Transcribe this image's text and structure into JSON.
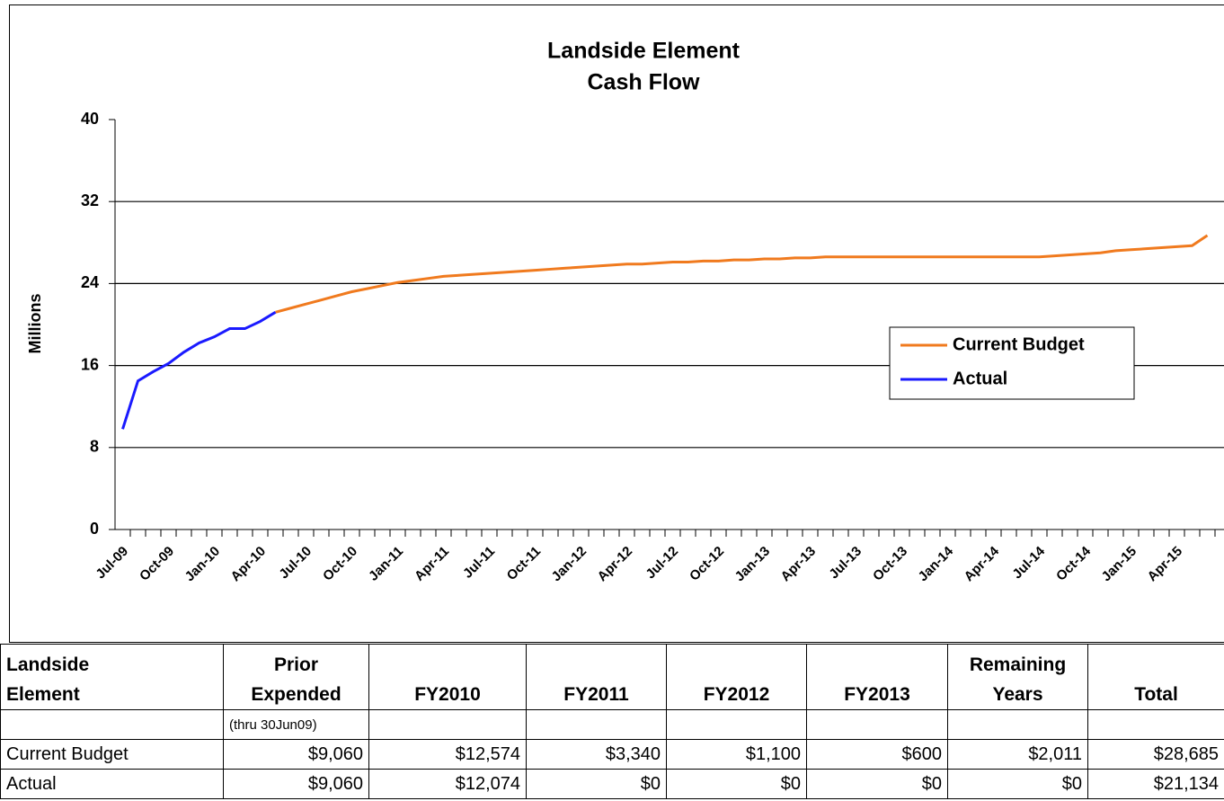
{
  "chart_data": {
    "type": "line",
    "title": [
      "Landside Element",
      "Cash Flow"
    ],
    "y_label": "Millions",
    "categories": [
      "Jul-09",
      null,
      null,
      "Oct-09",
      null,
      null,
      "Jan-10",
      null,
      null,
      "Apr-10",
      null,
      null,
      "Jul-10",
      null,
      null,
      "Oct-10",
      null,
      null,
      "Jan-11",
      null,
      null,
      "Apr-11",
      null,
      null,
      "Jul-11",
      null,
      null,
      "Oct-11",
      null,
      null,
      "Jan-12",
      null,
      null,
      "Apr-12",
      null,
      null,
      "Jul-12",
      null,
      null,
      "Oct-12",
      null,
      null,
      "Jan-13",
      null,
      null,
      "Apr-13",
      null,
      null,
      "Jul-13",
      null,
      null,
      "Oct-13",
      null,
      null,
      "Jan-14",
      null,
      null,
      "Apr-14",
      null,
      null,
      "Jul-14",
      null,
      null,
      "Oct-14",
      null,
      null,
      "Jan-15",
      null,
      null,
      "Apr-15",
      null,
      null
    ],
    "series": [
      {
        "name": "Current Budget",
        "color": "#f07a1e",
        "values": [
          null,
          null,
          null,
          null,
          null,
          null,
          null,
          null,
          null,
          null,
          21.2,
          21.6,
          22.0,
          22.4,
          22.8,
          23.2,
          23.5,
          23.8,
          24.1,
          24.3,
          24.5,
          24.7,
          24.8,
          24.9,
          25.0,
          25.1,
          25.2,
          25.3,
          25.4,
          25.5,
          25.6,
          25.7,
          25.8,
          25.9,
          25.9,
          26.0,
          26.1,
          26.1,
          26.2,
          26.2,
          26.3,
          26.3,
          26.4,
          26.4,
          26.5,
          26.5,
          26.6,
          26.6,
          26.6,
          26.6,
          26.6,
          26.6,
          26.6,
          26.6,
          26.6,
          26.6,
          26.6,
          26.6,
          26.6,
          26.6,
          26.6,
          26.7,
          26.8,
          26.9,
          27.0,
          27.2,
          27.3,
          27.4,
          27.5,
          27.6,
          27.7,
          28.7
        ]
      },
      {
        "name": "Actual",
        "color": "#1a1aff",
        "values": [
          9.8,
          14.5,
          15.4,
          16.2,
          17.3,
          18.2,
          18.8,
          19.6,
          19.6,
          20.3,
          21.2,
          null,
          null,
          null,
          null,
          null,
          null,
          null,
          null,
          null,
          null,
          null,
          null,
          null,
          null,
          null,
          null,
          null,
          null,
          null,
          null,
          null,
          null,
          null,
          null,
          null,
          null,
          null,
          null,
          null,
          null,
          null,
          null,
          null,
          null,
          null,
          null,
          null,
          null,
          null,
          null,
          null,
          null,
          null,
          null,
          null,
          null,
          null,
          null,
          null,
          null,
          null,
          null,
          null,
          null,
          null,
          null,
          null,
          null,
          null,
          null,
          null
        ]
      }
    ],
    "ylim": [
      0,
      40
    ],
    "yticks": [
      0,
      8,
      16,
      24,
      32,
      40
    ],
    "grid": true,
    "legend": "right"
  },
  "table": {
    "header": [
      [
        "Landside",
        "Element"
      ],
      [
        "Prior",
        "Expended"
      ],
      [
        "FY2010"
      ],
      [
        "FY2011"
      ],
      [
        "FY2012"
      ],
      [
        "FY2013"
      ],
      [
        "Remaining",
        "Years"
      ],
      [
        "Total"
      ]
    ],
    "note": "(thru 30Jun09)",
    "rows": [
      [
        "Current Budget",
        "$9,060",
        "$12,574",
        "$3,340",
        "$1,100",
        "$600",
        "$2,011",
        "$28,685"
      ],
      [
        "Actual",
        "$9,060",
        "$12,074",
        "$0",
        "$0",
        "$0",
        "$0",
        "$21,134"
      ]
    ]
  }
}
